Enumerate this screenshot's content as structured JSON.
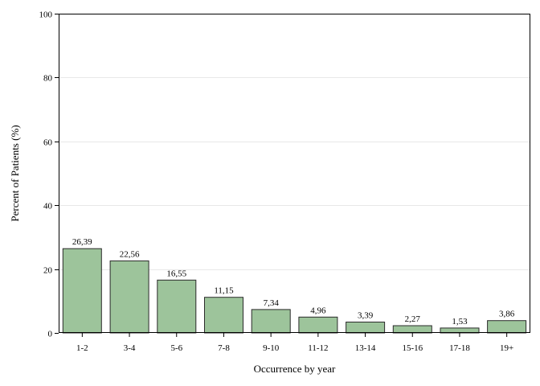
{
  "chart_data": {
    "type": "bar",
    "categories": [
      "1-2",
      "3-4",
      "5-6",
      "7-8",
      "9-10",
      "11-12",
      "13-14",
      "15-16",
      "17-18",
      "19+"
    ],
    "values": [
      26.39,
      22.56,
      16.55,
      11.15,
      7.34,
      4.96,
      3.39,
      2.27,
      1.53,
      3.86
    ],
    "data_labels": [
      "26,39",
      "22,56",
      "16,55",
      "11,15",
      "7,34",
      "4,96",
      "3,39",
      "2,27",
      "1,53",
      "3,86"
    ],
    "title": "",
    "xlabel": "Occurrence by year",
    "ylabel": "Percent of Patients (%)",
    "ylim": [
      0,
      100
    ],
    "yticks": [
      0,
      20,
      40,
      60,
      80,
      100
    ],
    "grid": true,
    "legend": "none",
    "bar_color": "#9dc49b",
    "bar_edge_color": "#2b2b2b",
    "grid_color": "#e8e8e8"
  }
}
